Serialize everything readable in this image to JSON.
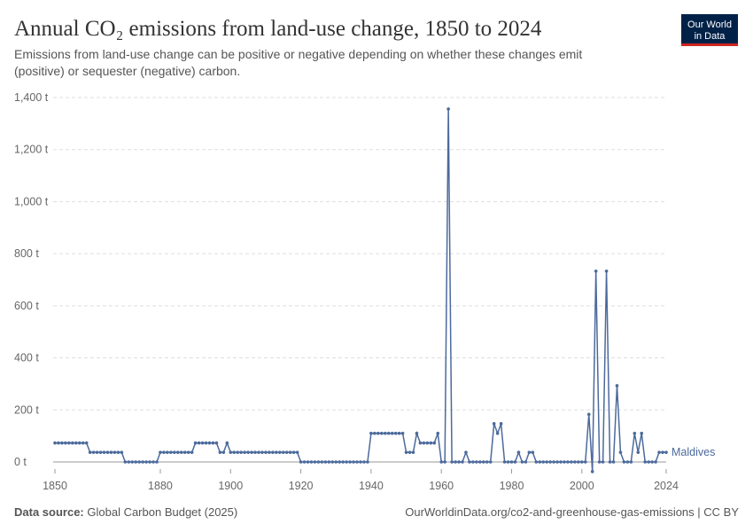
{
  "logo": [
    "Our World",
    "in Data"
  ],
  "chart_data": {
    "type": "line",
    "title": "Annual CO₂ emissions from land-use change, 1850 to 2024",
    "subtitle": [
      "Emissions from land-use change can be positive or negative depending on whether these changes emit",
      "(positive) or sequester (negative) carbon."
    ],
    "source_label": "Data source:",
    "source": "Global Carbon Budget (2025)",
    "footer": "OurWorldinData.org/co2-and-greenhouse-gas-emissions | CC BY",
    "x": [
      1850,
      1851,
      1852,
      1853,
      1854,
      1855,
      1856,
      1857,
      1858,
      1859,
      1860,
      1861,
      1862,
      1863,
      1864,
      1865,
      1866,
      1867,
      1868,
      1869,
      1870,
      1871,
      1872,
      1873,
      1874,
      1875,
      1876,
      1877,
      1878,
      1879,
      1880,
      1881,
      1882,
      1883,
      1884,
      1885,
      1886,
      1887,
      1888,
      1889,
      1890,
      1891,
      1892,
      1893,
      1894,
      1895,
      1896,
      1897,
      1898,
      1899,
      1900,
      1901,
      1902,
      1903,
      1904,
      1905,
      1906,
      1907,
      1908,
      1909,
      1910,
      1911,
      1912,
      1913,
      1914,
      1915,
      1916,
      1917,
      1918,
      1919,
      1920,
      1921,
      1922,
      1923,
      1924,
      1925,
      1926,
      1927,
      1928,
      1929,
      1930,
      1931,
      1932,
      1933,
      1934,
      1935,
      1936,
      1937,
      1938,
      1939,
      1940,
      1941,
      1942,
      1943,
      1944,
      1945,
      1946,
      1947,
      1948,
      1949,
      1950,
      1951,
      1952,
      1953,
      1954,
      1955,
      1956,
      1957,
      1958,
      1959,
      1960,
      1961,
      1962,
      1963,
      1964,
      1965,
      1966,
      1967,
      1968,
      1969,
      1970,
      1971,
      1972,
      1973,
      1974,
      1975,
      1976,
      1977,
      1978,
      1979,
      1980,
      1981,
      1982,
      1983,
      1984,
      1985,
      1986,
      1987,
      1988,
      1989,
      1990,
      1991,
      1992,
      1993,
      1994,
      1995,
      1996,
      1997,
      1998,
      1999,
      2000,
      2001,
      2002,
      2003,
      2004,
      2005,
      2006,
      2007,
      2008,
      2009,
      2010,
      2011,
      2012,
      2013,
      2014,
      2015,
      2016,
      2017,
      2018,
      2019,
      2020,
      2021,
      2022,
      2023,
      2024
    ],
    "series": [
      {
        "name": "Maldives",
        "color": "#4c6a9c",
        "values": [
          73,
          73,
          73,
          73,
          73,
          73,
          73,
          73,
          73,
          73,
          37,
          37,
          37,
          37,
          37,
          37,
          37,
          37,
          37,
          37,
          0,
          0,
          0,
          0,
          0,
          0,
          0,
          0,
          0,
          0,
          37,
          37,
          37,
          37,
          37,
          37,
          37,
          37,
          37,
          37,
          73,
          73,
          73,
          73,
          73,
          73,
          73,
          37,
          37,
          73,
          37,
          37,
          37,
          37,
          37,
          37,
          37,
          37,
          37,
          37,
          37,
          37,
          37,
          37,
          37,
          37,
          37,
          37,
          37,
          37,
          0,
          0,
          0,
          0,
          0,
          0,
          0,
          0,
          0,
          0,
          0,
          0,
          0,
          0,
          0,
          0,
          0,
          0,
          0,
          0,
          110,
          110,
          110,
          110,
          110,
          110,
          110,
          110,
          110,
          110,
          37,
          37,
          37,
          110,
          73,
          73,
          73,
          73,
          73,
          110,
          0,
          0,
          1356,
          0,
          0,
          0,
          0,
          37,
          0,
          0,
          0,
          0,
          0,
          0,
          0,
          147,
          110,
          147,
          0,
          0,
          0,
          0,
          37,
          0,
          0,
          37,
          37,
          0,
          0,
          0,
          0,
          0,
          0,
          0,
          0,
          0,
          0,
          0,
          0,
          0,
          0,
          0,
          183,
          -37,
          733,
          0,
          0,
          733,
          0,
          0,
          293,
          37,
          0,
          0,
          0,
          110,
          37,
          110,
          0,
          0,
          0,
          0,
          37,
          37,
          37
        ]
      }
    ],
    "xlim": [
      1850,
      2024
    ],
    "xticks": [
      1850,
      1880,
      1900,
      1920,
      1940,
      1960,
      1980,
      2000,
      2024
    ],
    "ylim": [
      -37,
      1400
    ],
    "yticks": [
      {
        "value": 0,
        "label": "0 t"
      },
      {
        "value": 200,
        "label": "200 t"
      },
      {
        "value": 400,
        "label": "400 t"
      },
      {
        "value": 600,
        "label": "600 t"
      },
      {
        "value": 800,
        "label": "800 t"
      },
      {
        "value": 1000,
        "label": "1,000 t"
      },
      {
        "value": 1200,
        "label": "1,200 t"
      },
      {
        "value": 1400,
        "label": "1,400 t"
      }
    ],
    "grid": true
  }
}
